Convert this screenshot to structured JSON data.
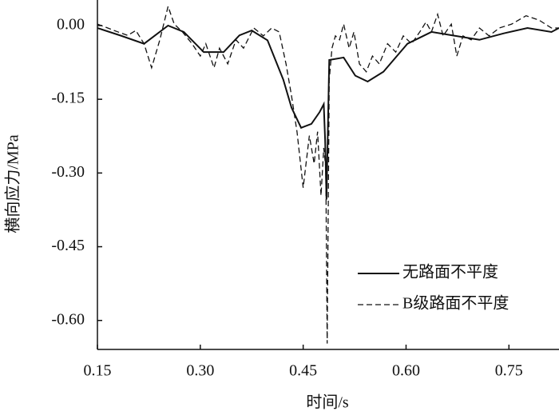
{
  "chart_data": {
    "type": "line",
    "xlabel": "时间/s",
    "ylabel": "横向应力/MPa",
    "xlim": [
      0.15,
      0.823
    ],
    "ylim": [
      -0.659,
      0.052
    ],
    "xticks": [
      0.15,
      {
        "value": 0.3,
        "label": "0.30"
      },
      0.45,
      {
        "value": 0.6,
        "label": "0.60"
      },
      0.75
    ],
    "yticks": [
      {
        "value": 0,
        "label": "0.00"
      },
      -0.15,
      {
        "value": -0.3,
        "label": "-0.30"
      },
      -0.45,
      {
        "value": -0.6,
        "label": "-0.60"
      }
    ],
    "legend": "lower right",
    "series": [
      {
        "name": "无路面不平度",
        "color": "#111111",
        "line_style": "solid",
        "x": [
          0.15,
          0.183,
          0.218,
          0.253,
          0.276,
          0.305,
          0.334,
          0.357,
          0.375,
          0.398,
          0.421,
          0.433,
          0.447,
          0.462,
          0.474,
          0.48,
          0.482,
          0.484,
          0.488,
          0.509,
          0.526,
          0.544,
          0.567,
          0.602,
          0.637,
          0.672,
          0.707,
          0.742,
          0.777,
          0.812,
          0.823
        ],
        "values": [
          -0.005,
          -0.02,
          -0.037,
          0,
          -0.013,
          -0.054,
          -0.054,
          -0.02,
          -0.01,
          -0.03,
          -0.11,
          -0.167,
          -0.208,
          -0.2,
          -0.176,
          -0.16,
          -0.233,
          -0.354,
          -0.07,
          -0.065,
          -0.102,
          -0.114,
          -0.094,
          -0.037,
          -0.013,
          -0.021,
          -0.029,
          -0.016,
          -0.005,
          -0.013,
          -0.005
        ]
      },
      {
        "name": "B级路面不平度",
        "color": "#111111",
        "line_style": "dashed",
        "x": [
          0.15,
          0.165,
          0.18,
          0.194,
          0.206,
          0.218,
          0.229,
          0.241,
          0.253,
          0.262,
          0.274,
          0.288,
          0.3,
          0.308,
          0.32,
          0.328,
          0.34,
          0.352,
          0.363,
          0.378,
          0.392,
          0.404,
          0.415,
          0.425,
          0.433,
          0.441,
          0.45,
          0.459,
          0.466,
          0.471,
          0.476,
          0.48,
          0.483,
          0.485,
          0.488,
          0.492,
          0.497,
          0.503,
          0.509,
          0.517,
          0.524,
          0.532,
          0.542,
          0.551,
          0.561,
          0.573,
          0.585,
          0.596,
          0.608,
          0.62,
          0.629,
          0.637,
          0.646,
          0.654,
          0.666,
          0.674,
          0.683,
          0.695,
          0.707,
          0.721,
          0.736,
          0.754,
          0.775,
          0.794,
          0.812,
          0.823
        ],
        "values": [
          0.003,
          -0.005,
          -0.013,
          -0.02,
          -0.01,
          -0.037,
          -0.086,
          -0.029,
          0.039,
          0.003,
          -0.013,
          -0.037,
          -0.062,
          -0.037,
          -0.086,
          -0.046,
          -0.078,
          -0.029,
          -0.046,
          -0.005,
          -0.021,
          -0.005,
          -0.013,
          -0.078,
          -0.143,
          -0.216,
          -0.33,
          -0.224,
          -0.281,
          -0.216,
          -0.346,
          -0.249,
          -0.289,
          -0.647,
          -0.11,
          -0.046,
          -0.021,
          -0.029,
          0.003,
          -0.046,
          -0.013,
          -0.078,
          -0.094,
          -0.062,
          -0.078,
          -0.037,
          -0.054,
          -0.021,
          -0.037,
          -0.013,
          0.007,
          -0.013,
          0.023,
          -0.021,
          0.003,
          -0.062,
          -0.021,
          -0.029,
          -0.005,
          -0.021,
          -0.005,
          0.003,
          0.02,
          0.011,
          -0.005,
          -0.005
        ]
      }
    ]
  }
}
